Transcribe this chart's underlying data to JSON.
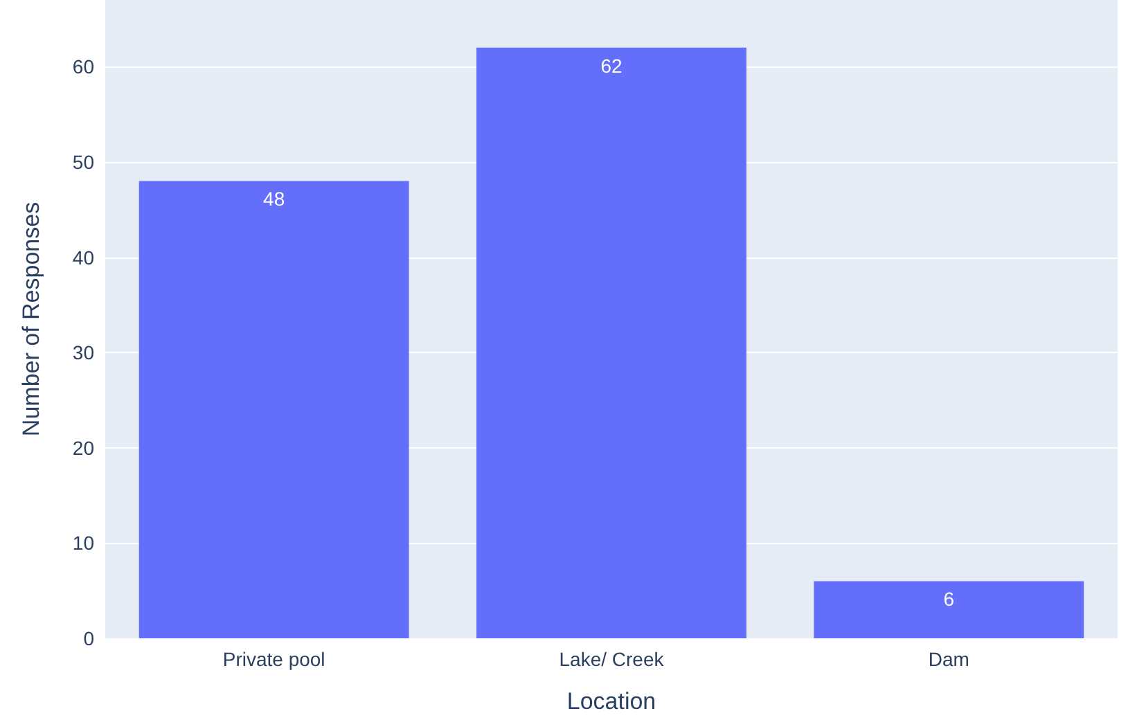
{
  "chart_data": {
    "type": "bar",
    "categories": [
      "Private pool",
      "Lake/ Creek",
      "Dam"
    ],
    "values": [
      48,
      62,
      6
    ],
    "color": "#636efa",
    "xlabel": "Location",
    "ylabel": "Number of Responses",
    "ylim": [
      0,
      67
    ],
    "yticks": [
      0,
      10,
      20,
      30,
      40,
      50,
      60
    ],
    "grid": "y",
    "data_labels": true
  }
}
